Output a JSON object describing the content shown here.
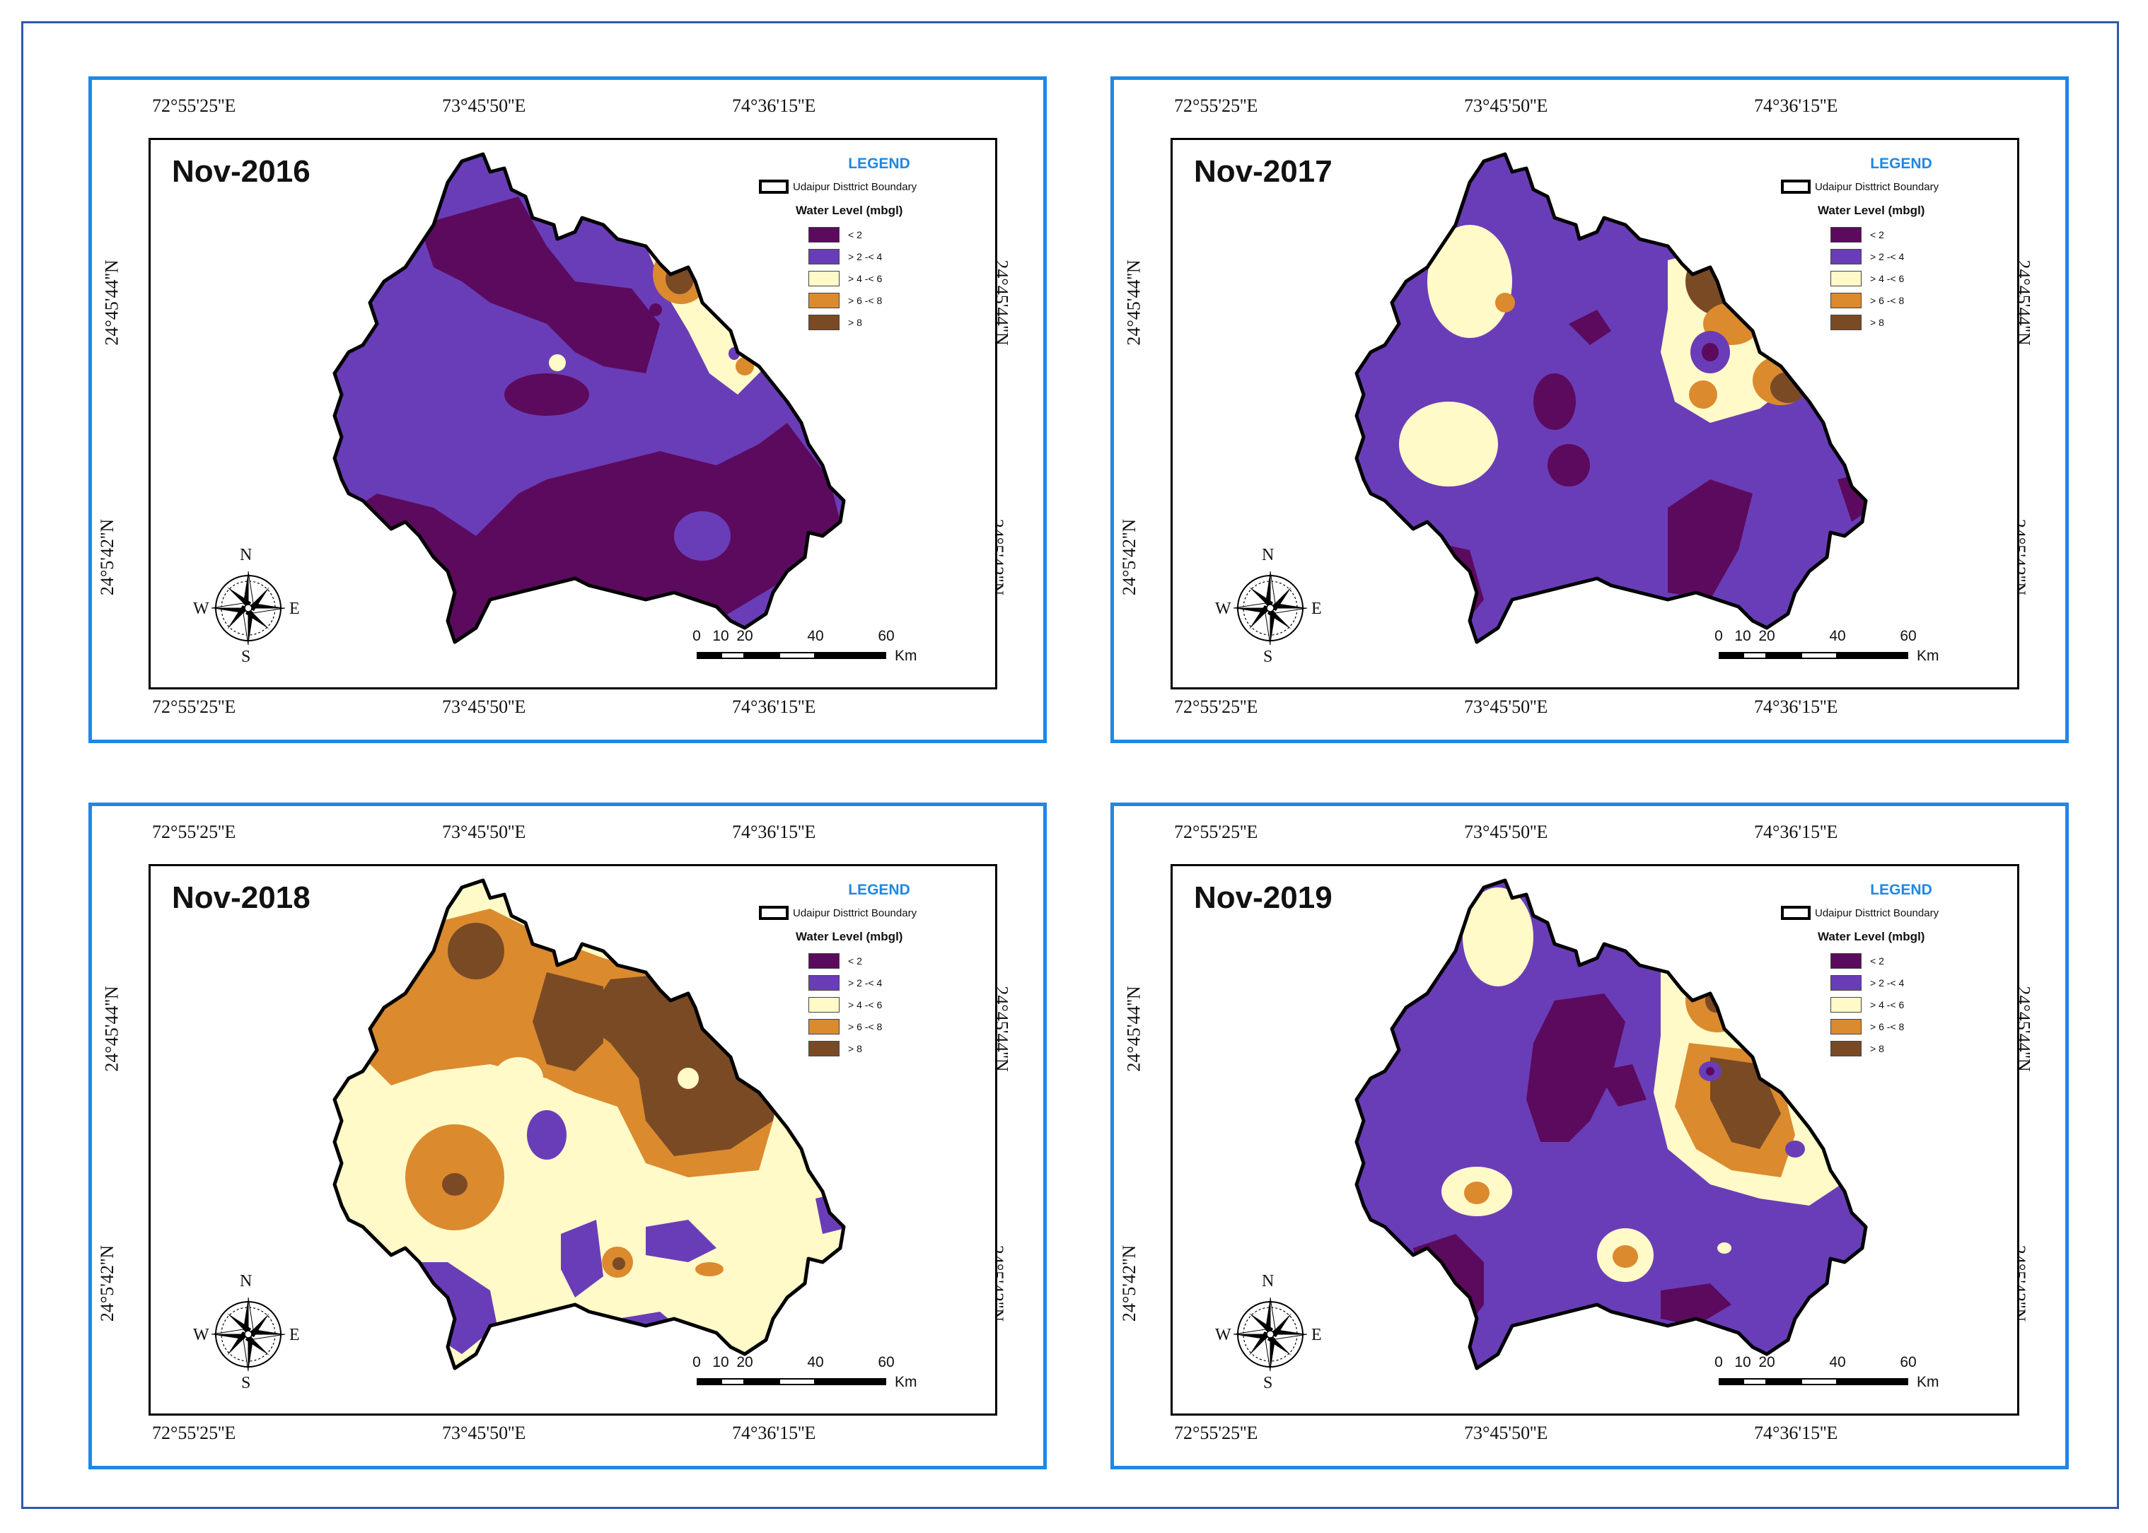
{
  "legend": {
    "title": "LEGEND",
    "boundary_label": "Udaipur Disttrict Boundary",
    "water_level_title": "Water Level (mbgl)",
    "classes": [
      {
        "label": "< 2",
        "color": "#5c0a5e"
      },
      {
        "label": "> 2 -< 4",
        "color": "#6a3db8"
      },
      {
        "label": "> 4 -< 6",
        "color": "#fffac8"
      },
      {
        "label": "> 6 -< 8",
        "color": "#db8a2e"
      },
      {
        "label": "> 8",
        "color": "#7a4a25"
      }
    ]
  },
  "coords": {
    "top": [
      "72°55'25''E",
      "73°45'50''E",
      "74°36'15''E"
    ],
    "bottom": [
      "72°55'25''E",
      "73°45'50''E",
      "74°36'15''E"
    ],
    "left": [
      "24°45'44''N",
      "24°5'42''N"
    ],
    "right": [
      "24°45'44''N",
      "24°5'42''N"
    ]
  },
  "compass": {
    "n": "N",
    "s": "S",
    "e": "E",
    "w": "W"
  },
  "scale": {
    "labels": [
      "0",
      "10",
      "20",
      "40",
      "60"
    ],
    "unit": "Km"
  },
  "panels": [
    {
      "title": "Nov-2016"
    },
    {
      "title": "Nov-2017"
    },
    {
      "title": "Nov-2018"
    },
    {
      "title": "Nov-2019"
    }
  ]
}
